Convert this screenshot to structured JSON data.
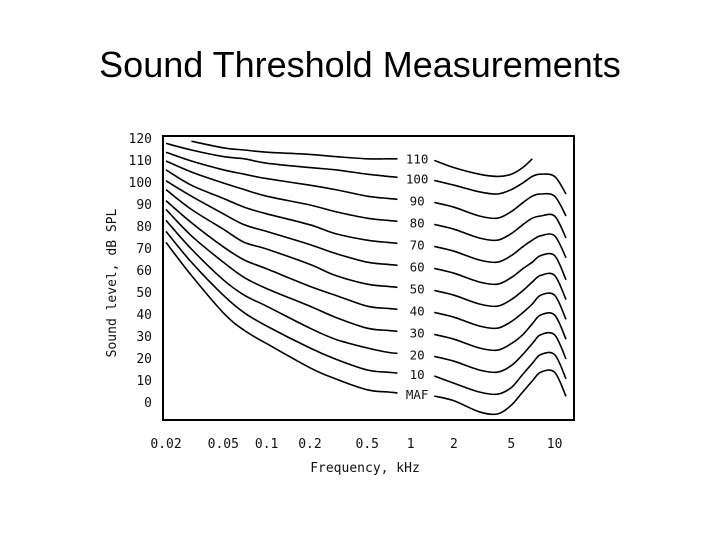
{
  "slide": {
    "title": "Sound Threshold Measurements"
  },
  "chart_data": {
    "type": "line",
    "title": "",
    "xlabel": "Frequency, kHz",
    "ylabel": "Sound level, dB SPL",
    "xscale": "log",
    "xlim": [
      0.02,
      13
    ],
    "ylim": [
      0,
      120
    ],
    "x_ticks": [
      {
        "value": 0.02,
        "label": "0.02"
      },
      {
        "value": 0.05,
        "label": "0.05"
      },
      {
        "value": 0.1,
        "label": "0.1"
      },
      {
        "value": 0.2,
        "label": "0.2"
      },
      {
        "value": 0.5,
        "label": "0.5"
      },
      {
        "value": 1,
        "label": "1"
      },
      {
        "value": 2,
        "label": "2"
      },
      {
        "value": 5,
        "label": "5"
      },
      {
        "value": 10,
        "label": "10"
      }
    ],
    "y_ticks": [
      {
        "value": 0,
        "label": "0"
      },
      {
        "value": 10,
        "label": "10"
      },
      {
        "value": 20,
        "label": "20"
      },
      {
        "value": 30,
        "label": "30"
      },
      {
        "value": 40,
        "label": "40"
      },
      {
        "value": 50,
        "label": "50"
      },
      {
        "value": 60,
        "label": "60"
      },
      {
        "value": 70,
        "label": "70"
      },
      {
        "value": 80,
        "label": "80"
      },
      {
        "value": 90,
        "label": "90"
      },
      {
        "value": 100,
        "label": "100"
      },
      {
        "value": 110,
        "label": "110"
      },
      {
        "value": 120,
        "label": "120"
      }
    ],
    "grid": false,
    "legend": "inline labels at 1 kHz",
    "series": [
      {
        "name": "MAF",
        "x": [
          0.02,
          0.03,
          0.05,
          0.07,
          0.1,
          0.2,
          0.3,
          0.5,
          0.7,
          1,
          1.5,
          2,
          3,
          4,
          5,
          6,
          7,
          8,
          10,
          12
        ],
        "y": [
          73,
          58,
          41,
          33,
          27,
          16,
          11,
          6,
          5,
          4,
          3,
          1,
          -4,
          -5,
          -1,
          5,
          10,
          14,
          14,
          3
        ]
      },
      {
        "name": "10",
        "x": [
          0.02,
          0.03,
          0.05,
          0.07,
          0.1,
          0.2,
          0.3,
          0.5,
          0.7,
          1,
          1.5,
          2,
          3,
          4,
          5,
          6,
          7,
          8,
          10,
          12
        ],
        "y": [
          78,
          64,
          49,
          41,
          35,
          25,
          20,
          15,
          14,
          13,
          12,
          9,
          5,
          4,
          7,
          13,
          18,
          22,
          22,
          11
        ]
      },
      {
        "name": "20",
        "x": [
          0.02,
          0.03,
          0.05,
          0.07,
          0.1,
          0.2,
          0.3,
          0.5,
          0.7,
          1,
          1.5,
          2,
          3,
          4,
          5,
          6,
          7,
          8,
          10,
          12
        ],
        "y": [
          83,
          70,
          56,
          49,
          44,
          34,
          29,
          25,
          23,
          22,
          21,
          19,
          15,
          14,
          17,
          22,
          27,
          31,
          31,
          20
        ]
      },
      {
        "name": "30",
        "x": [
          0.02,
          0.03,
          0.05,
          0.07,
          0.1,
          0.2,
          0.3,
          0.5,
          0.7,
          1,
          1.5,
          2,
          3,
          4,
          5,
          6,
          7,
          8,
          10,
          12
        ],
        "y": [
          88,
          76,
          64,
          57,
          52,
          44,
          39,
          34,
          33,
          32,
          31,
          29,
          25,
          24,
          27,
          31,
          36,
          40,
          40,
          29
        ]
      },
      {
        "name": "40",
        "x": [
          0.02,
          0.03,
          0.05,
          0.07,
          0.1,
          0.2,
          0.3,
          0.5,
          0.7,
          1,
          1.5,
          2,
          3,
          4,
          5,
          6,
          7,
          8,
          10,
          12
        ],
        "y": [
          92,
          82,
          71,
          65,
          61,
          53,
          49,
          44,
          43,
          42,
          41,
          39,
          35,
          34,
          37,
          41,
          45,
          49,
          49,
          38
        ]
      },
      {
        "name": "50",
        "x": [
          0.02,
          0.03,
          0.05,
          0.07,
          0.1,
          0.2,
          0.3,
          0.5,
          0.7,
          1,
          1.5,
          2,
          3,
          4,
          5,
          6,
          7,
          8,
          10,
          12
        ],
        "y": [
          97,
          88,
          79,
          73,
          70,
          63,
          58,
          54,
          53,
          52,
          51,
          49,
          45,
          44,
          47,
          51,
          55,
          58,
          58,
          47
        ]
      },
      {
        "name": "60",
        "x": [
          0.02,
          0.03,
          0.05,
          0.07,
          0.1,
          0.2,
          0.3,
          0.5,
          0.7,
          1,
          1.5,
          2,
          3,
          4,
          5,
          6,
          7,
          8,
          10,
          12
        ],
        "y": [
          101,
          94,
          86,
          81,
          78,
          72,
          68,
          64,
          63,
          62,
          61,
          59,
          55,
          54,
          57,
          61,
          64,
          67,
          67,
          56
        ]
      },
      {
        "name": "70",
        "x": [
          0.02,
          0.03,
          0.05,
          0.07,
          0.1,
          0.2,
          0.3,
          0.5,
          0.7,
          1,
          1.5,
          2,
          3,
          4,
          5,
          6,
          7,
          8,
          10,
          12
        ],
        "y": [
          106,
          99,
          93,
          89,
          86,
          81,
          77,
          74,
          73,
          72,
          71,
          69,
          65,
          64,
          67,
          71,
          74,
          76,
          76,
          66
        ]
      },
      {
        "name": "80",
        "x": [
          0.02,
          0.03,
          0.05,
          0.07,
          0.1,
          0.2,
          0.3,
          0.5,
          0.7,
          1,
          1.5,
          2,
          3,
          4,
          5,
          6,
          7,
          8,
          10,
          12
        ],
        "y": [
          110,
          105,
          100,
          97,
          94,
          90,
          87,
          84,
          83,
          82,
          81,
          79,
          75,
          74,
          77,
          81,
          84,
          85,
          85,
          75
        ]
      },
      {
        "name": "90",
        "x": [
          0.02,
          0.03,
          0.05,
          0.07,
          0.1,
          0.2,
          0.3,
          0.5,
          0.7,
          1,
          1.5,
          2,
          3,
          4,
          5,
          6,
          7,
          8,
          10,
          12
        ],
        "y": [
          114,
          110,
          106,
          104,
          102,
          99,
          97,
          94,
          93,
          92,
          91,
          89,
          85,
          84,
          87,
          91,
          94,
          95,
          94,
          85
        ]
      },
      {
        "name": "100",
        "x": [
          0.02,
          0.03,
          0.05,
          0.07,
          0.1,
          0.2,
          0.3,
          0.5,
          0.7,
          1,
          1.5,
          2,
          3,
          4,
          5,
          6,
          7,
          8,
          10,
          12
        ],
        "y": [
          118,
          115,
          112,
          111,
          109,
          107,
          106,
          104,
          103,
          102,
          101,
          99,
          96,
          95,
          97,
          100,
          103,
          104,
          103,
          95
        ]
      },
      {
        "name": "110",
        "x": [
          0.03,
          0.05,
          0.07,
          0.1,
          0.2,
          0.3,
          0.5,
          0.7,
          1,
          1.5,
          2,
          3,
          4,
          5,
          6,
          7
        ],
        "y": [
          119,
          116,
          115,
          114,
          113,
          112,
          111,
          111,
          111,
          110,
          107,
          104,
          103,
          104,
          107,
          111
        ]
      }
    ]
  }
}
